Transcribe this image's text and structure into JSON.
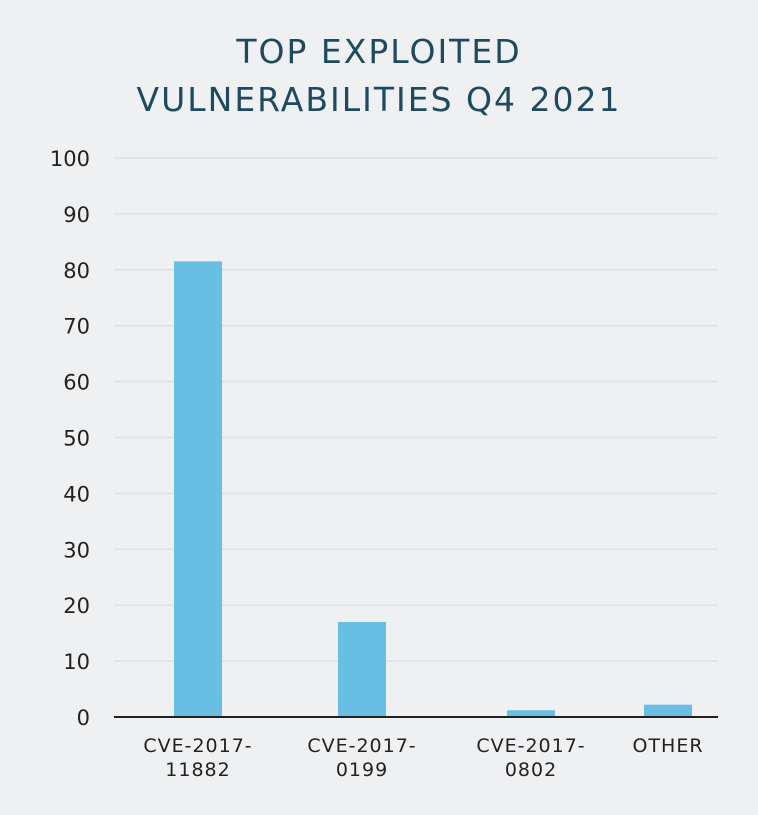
{
  "chart_data": {
    "type": "bar",
    "title": [
      "TOP EXPLOITED",
      "VULNERABILITIES Q4 2021"
    ],
    "categories": [
      [
        "CVE-2017-",
        "11882"
      ],
      [
        "CVE-2017-",
        "0199"
      ],
      [
        "CVE-2017-",
        "0802"
      ],
      [
        "OTHER"
      ]
    ],
    "values": [
      81.5,
      17,
      1.2,
      2.2
    ],
    "ylim": [
      0,
      100
    ],
    "yticks": [
      "0",
      "10",
      "20",
      "30",
      "40",
      "50",
      "60",
      "70",
      "80",
      "90",
      "100"
    ],
    "xlabel": "",
    "ylabel": "",
    "grid": true,
    "colors": {
      "bar": "#69bfe3",
      "grid": "#dde0e4",
      "axis": "#222222",
      "tick_text": "#222222",
      "title": "#1e4a5f"
    }
  }
}
